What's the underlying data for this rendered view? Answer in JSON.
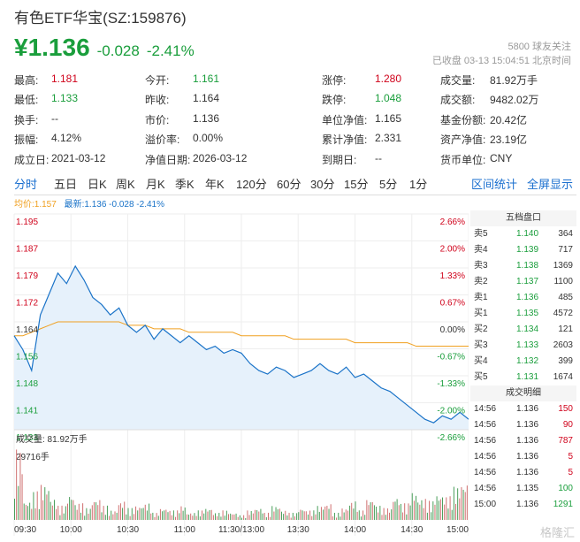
{
  "header": {
    "title": "有色ETF华宝(SZ:159876)",
    "price": "¥1.136",
    "change": "-0.028",
    "change_pct": "-2.41%",
    "follow_count": "5800",
    "follow_label": "球友关注",
    "status": "已收盘 03-13 15:04:51 北京时间"
  },
  "stats": [
    [
      {
        "l": "最高:",
        "v": "1.181",
        "c": "red"
      },
      {
        "l": "今开:",
        "v": "1.161",
        "c": "green"
      },
      {
        "l": "涨停:",
        "v": "1.280",
        "c": "red"
      },
      {
        "l": "成交量:",
        "v": "81.92万手",
        "c": ""
      }
    ],
    [
      {
        "l": "最低:",
        "v": "1.133",
        "c": "green"
      },
      {
        "l": "昨收:",
        "v": "1.164",
        "c": ""
      },
      {
        "l": "跌停:",
        "v": "1.048",
        "c": "green"
      },
      {
        "l": "成交额:",
        "v": "9482.02万",
        "c": ""
      }
    ],
    [
      {
        "l": "换手:",
        "v": "--",
        "c": ""
      },
      {
        "l": "市价:",
        "v": "1.136",
        "c": ""
      },
      {
        "l": "单位净值:",
        "v": "1.165",
        "c": ""
      },
      {
        "l": "基金份额:",
        "v": "20.42亿",
        "c": ""
      }
    ],
    [
      {
        "l": "振幅:",
        "v": "4.12%",
        "c": ""
      },
      {
        "l": "溢价率:",
        "v": "0.00%",
        "c": ""
      },
      {
        "l": "累计净值:",
        "v": "2.331",
        "c": ""
      },
      {
        "l": "资产净值:",
        "v": "23.19亿",
        "c": ""
      }
    ],
    [
      {
        "l": "成立日:",
        "v": "2021-03-12",
        "c": ""
      },
      {
        "l": "净值日期:",
        "v": "2026-03-12",
        "c": ""
      },
      {
        "l": "到期日:",
        "v": "--",
        "c": ""
      },
      {
        "l": "货币单位:",
        "v": "CNY",
        "c": ""
      }
    ]
  ],
  "tabs": [
    "分时",
    "五日",
    "日K",
    "周K",
    "月K",
    "季K",
    "年K",
    "120分",
    "60分",
    "30分",
    "15分",
    "5分",
    "1分"
  ],
  "tab_right": [
    "区间统计",
    "全屏显示"
  ],
  "legend": {
    "avg": "均价:1.157",
    "latest": "最新:1.136 -0.028 -2.41%"
  },
  "volume_label": "成交量: 81.92万手",
  "volume_max": "29716手",
  "chart_data": {
    "type": "line",
    "y_ticks": [
      "1.195",
      "1.187",
      "1.179",
      "1.172",
      "1.164",
      "1.156",
      "1.148",
      "1.141",
      "1.133"
    ],
    "pct_ticks": [
      "2.66%",
      "2.00%",
      "1.33%",
      "0.67%",
      "0.00%",
      "-0.67%",
      "-1.33%",
      "-2.00%",
      "-2.66%"
    ],
    "x_ticks": [
      "09:30",
      "10:00",
      "10:30",
      "11:00",
      "11:30/13:00",
      "13:30",
      "14:00",
      "14:30",
      "15:00"
    ],
    "ylim": [
      1.133,
      1.195
    ],
    "prev_close": 1.164,
    "price": [
      1.16,
      1.156,
      1.15,
      1.166,
      1.172,
      1.178,
      1.175,
      1.18,
      1.176,
      1.171,
      1.169,
      1.166,
      1.168,
      1.163,
      1.161,
      1.163,
      1.159,
      1.162,
      1.16,
      1.158,
      1.16,
      1.158,
      1.156,
      1.157,
      1.155,
      1.156,
      1.155,
      1.152,
      1.15,
      1.149,
      1.151,
      1.15,
      1.148,
      1.149,
      1.15,
      1.152,
      1.15,
      1.149,
      1.151,
      1.148,
      1.149,
      1.147,
      1.145,
      1.144,
      1.142,
      1.14,
      1.138,
      1.136,
      1.135,
      1.137,
      1.136,
      1.138,
      1.136
    ],
    "avg": [
      1.16,
      1.16,
      1.161,
      1.162,
      1.163,
      1.164,
      1.164,
      1.164,
      1.164,
      1.164,
      1.164,
      1.164,
      1.164,
      1.163,
      1.163,
      1.163,
      1.162,
      1.162,
      1.162,
      1.162,
      1.161,
      1.161,
      1.161,
      1.161,
      1.161,
      1.161,
      1.16,
      1.16,
      1.16,
      1.16,
      1.16,
      1.16,
      1.159,
      1.159,
      1.159,
      1.159,
      1.159,
      1.159,
      1.159,
      1.158,
      1.158,
      1.158,
      1.158,
      1.158,
      1.158,
      1.158,
      1.157,
      1.157,
      1.157,
      1.157,
      1.157,
      1.157,
      1.157
    ],
    "volume": [
      29716,
      8000,
      12000,
      15000,
      9000,
      6000,
      11000,
      7000,
      5000,
      9000,
      6000,
      4000,
      8000,
      5000,
      6000,
      7000,
      3000,
      5000,
      4000,
      6000,
      3000,
      4000,
      5000,
      3000,
      4000,
      3000,
      2000,
      4000,
      5000,
      3000,
      6000,
      4000,
      3000,
      5000,
      4000,
      6000,
      7000,
      3000,
      5000,
      8000,
      4000,
      9000,
      6000,
      5000,
      10000,
      7000,
      12000,
      9000,
      8000,
      11000,
      10000,
      14000,
      16000
    ]
  },
  "orderbook": {
    "title": "五档盘口",
    "asks": [
      {
        "l": "卖5",
        "p": "1.140",
        "v": "364"
      },
      {
        "l": "卖4",
        "p": "1.139",
        "v": "717"
      },
      {
        "l": "卖3",
        "p": "1.138",
        "v": "1369"
      },
      {
        "l": "卖2",
        "p": "1.137",
        "v": "1100"
      },
      {
        "l": "卖1",
        "p": "1.136",
        "v": "485"
      }
    ],
    "bids": [
      {
        "l": "买1",
        "p": "1.135",
        "v": "4572"
      },
      {
        "l": "买2",
        "p": "1.134",
        "v": "121"
      },
      {
        "l": "买3",
        "p": "1.133",
        "v": "2603"
      },
      {
        "l": "买4",
        "p": "1.132",
        "v": "399"
      },
      {
        "l": "买5",
        "p": "1.131",
        "v": "1674"
      }
    ],
    "trades_title": "成交明细",
    "trades": [
      {
        "t": "14:56",
        "p": "1.136",
        "v": "150",
        "c": "red"
      },
      {
        "t": "14:56",
        "p": "1.136",
        "v": "90",
        "c": "red"
      },
      {
        "t": "14:56",
        "p": "1.136",
        "v": "787",
        "c": "red"
      },
      {
        "t": "14:56",
        "p": "1.136",
        "v": "5",
        "c": "red"
      },
      {
        "t": "14:56",
        "p": "1.136",
        "v": "5",
        "c": "red"
      },
      {
        "t": "14:56",
        "p": "1.135",
        "v": "100",
        "c": "green"
      },
      {
        "t": "15:00",
        "p": "1.136",
        "v": "1291",
        "c": "green"
      }
    ]
  },
  "watermark": "格隆汇",
  "colors": {
    "up": "#d0021b",
    "down": "#1a9e3c",
    "line": "#1a73c8",
    "avg": "#f0a020",
    "accent": "#1a6fcf"
  }
}
